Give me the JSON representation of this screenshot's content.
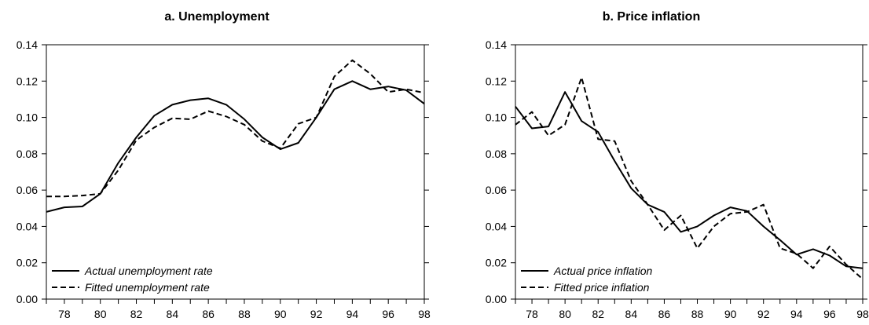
{
  "chart_data": [
    {
      "panel": "a",
      "type": "line",
      "title": "a. Unemployment",
      "xlabel": "",
      "ylabel": "",
      "xlim": [
        1977,
        1998
      ],
      "ylim": [
        0.0,
        0.14
      ],
      "y_ticks": [
        "0.00",
        "0.02",
        "0.04",
        "0.06",
        "0.08",
        "0.10",
        "0.12",
        "0.14"
      ],
      "x_ticks": [
        "78",
        "80",
        "82",
        "84",
        "86",
        "88",
        "90",
        "92",
        "94",
        "96",
        "98"
      ],
      "x": [
        1977,
        1978,
        1979,
        1980,
        1981,
        1982,
        1983,
        1984,
        1985,
        1986,
        1987,
        1988,
        1989,
        1990,
        1991,
        1992,
        1993,
        1994,
        1995,
        1996,
        1997,
        1998
      ],
      "series": [
        {
          "name": "Actual unemployment rate",
          "style": "solid",
          "values": [
            0.048,
            0.0505,
            0.051,
            0.058,
            0.075,
            0.089,
            0.101,
            0.107,
            0.1095,
            0.1105,
            0.107,
            0.099,
            0.089,
            0.0825,
            0.086,
            0.1,
            0.1155,
            0.12,
            0.1155,
            0.117,
            0.115,
            0.1075
          ]
        },
        {
          "name": "Fitted unemployment rate",
          "style": "dashed",
          "values": [
            0.0565,
            0.0565,
            0.057,
            0.058,
            0.071,
            0.0875,
            0.0945,
            0.0995,
            0.099,
            0.1035,
            0.1005,
            0.096,
            0.087,
            0.083,
            0.0965,
            0.1,
            0.1225,
            0.1315,
            0.124,
            0.114,
            0.1155,
            0.1135
          ]
        }
      ],
      "legend_position": "bottom-left",
      "colors": {
        "line": "#000000",
        "axis": "#000000"
      }
    },
    {
      "panel": "b",
      "type": "line",
      "title": "b. Price inflation",
      "xlabel": "",
      "ylabel": "",
      "xlim": [
        1977,
        1998
      ],
      "ylim": [
        0.0,
        0.14
      ],
      "y_ticks": [
        "0.00",
        "0.02",
        "0.04",
        "0.06",
        "0.08",
        "0.10",
        "0.12",
        "0.14"
      ],
      "x_ticks": [
        "78",
        "80",
        "82",
        "84",
        "86",
        "88",
        "90",
        "92",
        "94",
        "96",
        "98"
      ],
      "x": [
        1977,
        1978,
        1979,
        1980,
        1981,
        1982,
        1983,
        1984,
        1985,
        1986,
        1987,
        1988,
        1989,
        1990,
        1991,
        1992,
        1993,
        1994,
        1995,
        1996,
        1997,
        1998
      ],
      "series": [
        {
          "name": "Actual price inflation",
          "style": "solid",
          "values": [
            0.106,
            0.094,
            0.095,
            0.114,
            0.098,
            0.092,
            0.076,
            0.061,
            0.052,
            0.048,
            0.037,
            0.04,
            0.046,
            0.0505,
            0.0485,
            0.04,
            0.0325,
            0.0245,
            0.0275,
            0.024,
            0.018,
            0.017
          ]
        },
        {
          "name": "Fitted price inflation",
          "style": "dashed",
          "values": [
            0.096,
            0.103,
            0.09,
            0.096,
            0.122,
            0.088,
            0.087,
            0.065,
            0.052,
            0.038,
            0.046,
            0.028,
            0.04,
            0.047,
            0.048,
            0.052,
            0.028,
            0.025,
            0.017,
            0.029,
            0.019,
            0.011
          ]
        }
      ],
      "legend_position": "bottom-left",
      "colors": {
        "line": "#000000",
        "axis": "#000000"
      }
    }
  ]
}
